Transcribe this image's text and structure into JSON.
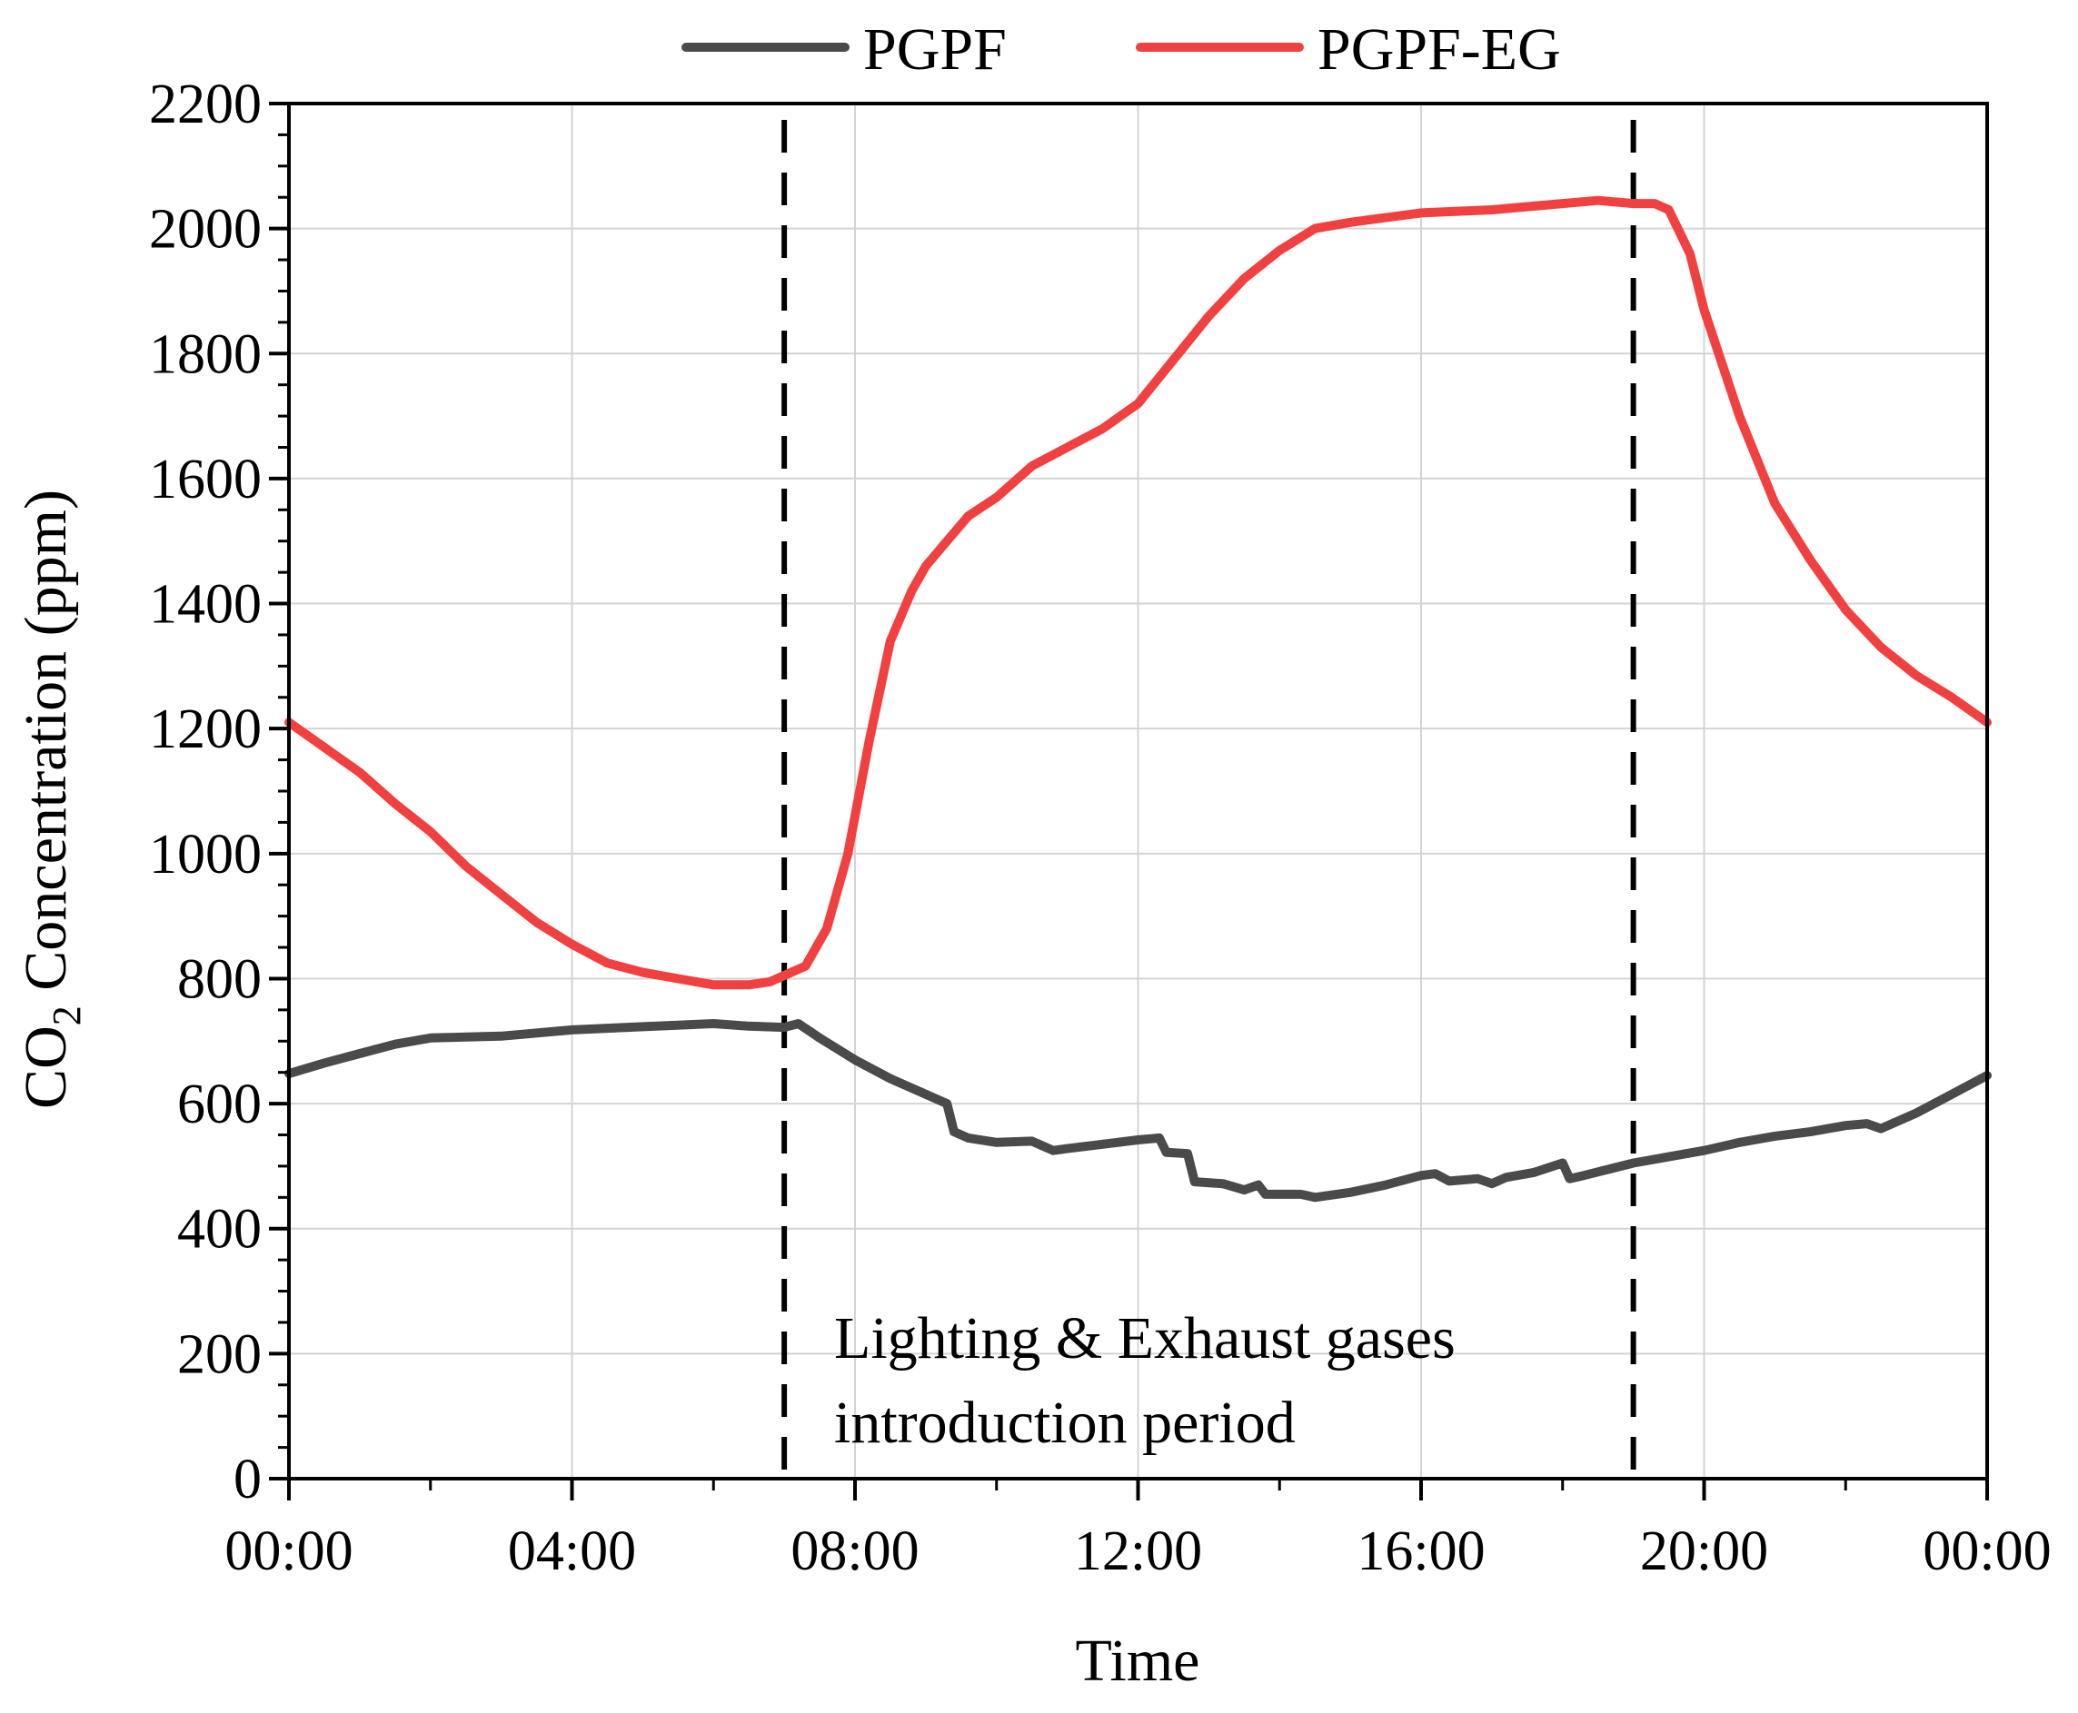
{
  "chart_data": {
    "type": "line",
    "title": "",
    "xlabel": "Time",
    "ylabel_main": "CO",
    "ylabel_sub": "2",
    "ylabel_rest": " Concentration (ppm)",
    "xlim": [
      0,
      24
    ],
    "ylim": [
      0,
      2200
    ],
    "x_ticks": [
      0,
      4,
      8,
      12,
      16,
      20,
      24
    ],
    "x_tick_labels": [
      "00:00",
      "04:00",
      "08:00",
      "12:00",
      "16:00",
      "20:00",
      "00:00"
    ],
    "y_ticks": [
      0,
      200,
      400,
      600,
      800,
      1000,
      1200,
      1400,
      1600,
      1800,
      2000,
      2200
    ],
    "y_tick_labels": [
      "0",
      "200",
      "400",
      "600",
      "800",
      "1000",
      "1200",
      "1400",
      "1600",
      "1800",
      "2000",
      "2200"
    ],
    "grid": true,
    "legend_position": "top",
    "vertical_markers": [
      7,
      19
    ],
    "annotation": [
      "Lighting & Exhaust gases",
      "introduction period"
    ],
    "x_unit": "hours",
    "series": [
      {
        "name": "PGPF",
        "color": "#4a4a4a",
        "x": [
          0,
          0.5,
          1,
          1.5,
          2,
          3,
          4,
          5,
          6,
          6.5,
          7,
          7.2,
          7.5,
          8,
          8.5,
          9,
          9.3,
          9.4,
          9.6,
          10,
          10.5,
          10.8,
          11,
          11.5,
          12,
          12.3,
          12.4,
          12.7,
          12.8,
          13.2,
          13.5,
          13.7,
          13.8,
          14.3,
          14.5,
          15,
          15.5,
          16,
          16.2,
          16.4,
          16.8,
          17,
          17.2,
          17.6,
          18,
          18.1,
          18.3,
          19,
          19.5,
          20,
          20.5,
          21,
          21.5,
          22,
          22.3,
          22.5,
          23,
          23.5,
          24
        ],
        "values": [
          648,
          665,
          680,
          695,
          705,
          708,
          718,
          723,
          728,
          724,
          722,
          728,
          705,
          670,
          640,
          615,
          600,
          555,
          545,
          538,
          540,
          525,
          528,
          535,
          542,
          545,
          522,
          520,
          475,
          472,
          462,
          470,
          455,
          455,
          450,
          458,
          470,
          485,
          488,
          476,
          480,
          472,
          482,
          490,
          505,
          480,
          485,
          505,
          515,
          525,
          538,
          548,
          555,
          565,
          568,
          560,
          585,
          615,
          645
        ]
      },
      {
        "name": "PGPF-EG",
        "color": "#f04040",
        "x": [
          0,
          0.5,
          1,
          1.5,
          2,
          2.5,
          3,
          3.5,
          4,
          4.5,
          5,
          5.5,
          6,
          6.5,
          6.8,
          7,
          7.3,
          7.6,
          7.9,
          8.2,
          8.5,
          8.8,
          9,
          9.3,
          9.6,
          10,
          10.5,
          11,
          11.5,
          12,
          12.5,
          13,
          13.5,
          14,
          14.5,
          15,
          16,
          17,
          18,
          18.5,
          19,
          19.3,
          19.5,
          19.8,
          20,
          20.5,
          21,
          21.5,
          22,
          22.5,
          23,
          23.5,
          24
        ],
        "values": [
          1210,
          1170,
          1130,
          1080,
          1035,
          980,
          935,
          890,
          855,
          825,
          810,
          800,
          790,
          790,
          795,
          805,
          820,
          880,
          1000,
          1180,
          1340,
          1420,
          1460,
          1500,
          1540,
          1570,
          1620,
          1650,
          1680,
          1720,
          1790,
          1860,
          1920,
          1965,
          2000,
          2010,
          2025,
          2030,
          2040,
          2045,
          2040,
          2040,
          2030,
          1960,
          1870,
          1700,
          1560,
          1470,
          1390,
          1330,
          1285,
          1250,
          1210
        ]
      }
    ]
  }
}
